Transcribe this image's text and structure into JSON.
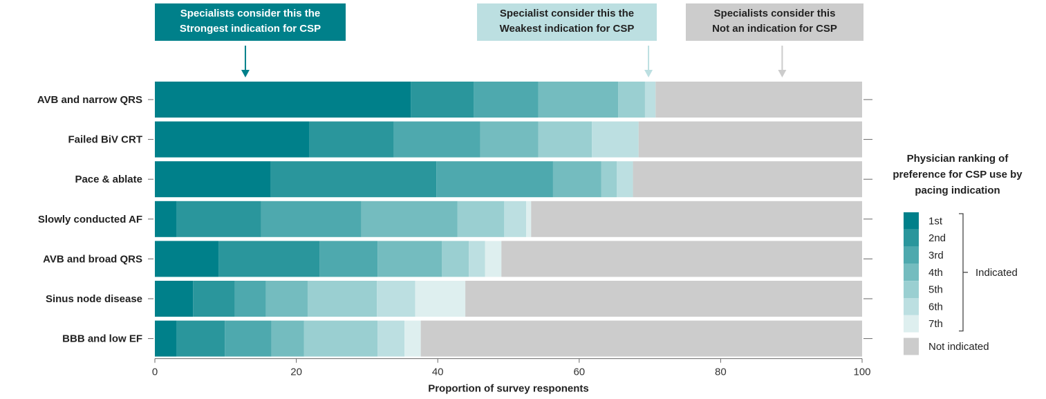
{
  "chart_data": {
    "type": "bar",
    "orientation": "horizontal",
    "stacked": true,
    "xlabel": "Proportion of survey responents",
    "xlim": [
      0,
      100
    ],
    "xticks": [
      0,
      20,
      40,
      60,
      80,
      100
    ],
    "categories": [
      "AVB and narrow QRS",
      "Failed BiV CRT",
      "Pace & ablate",
      "Slowly conducted AF",
      "AVB and broad QRS",
      "Sinus node disease",
      "BBB and low EF"
    ],
    "series": [
      {
        "name": "1st",
        "color": "#00808a",
        "values": [
          36.2,
          21.8,
          16.4,
          3.1,
          9.0,
          5.4,
          3.1
        ]
      },
      {
        "name": "2nd",
        "color": "#2a969c",
        "values": [
          8.9,
          12.0,
          23.4,
          11.9,
          14.3,
          5.9,
          6.8
        ]
      },
      {
        "name": "3rd",
        "color": "#4ea9ae",
        "values": [
          9.1,
          12.2,
          16.5,
          14.2,
          8.2,
          4.4,
          6.6
        ]
      },
      {
        "name": "4th",
        "color": "#74bcbf",
        "values": [
          11.3,
          8.2,
          6.8,
          13.6,
          9.1,
          5.9,
          4.6
        ]
      },
      {
        "name": "5th",
        "color": "#9acfd1",
        "values": [
          3.8,
          7.6,
          2.2,
          6.6,
          3.8,
          9.8,
          10.4
        ]
      },
      {
        "name": "6th",
        "color": "#bcdfe1",
        "values": [
          1.5,
          6.6,
          2.3,
          3.1,
          2.3,
          5.4,
          3.8
        ]
      },
      {
        "name": "7th",
        "color": "#deefef",
        "values": [
          0.0,
          0.0,
          0.0,
          0.7,
          2.3,
          7.1,
          2.3
        ]
      },
      {
        "name": "Not indicated",
        "color": "#cccccc",
        "values": [
          29.2,
          31.6,
          32.4,
          46.8,
          51.0,
          56.1,
          62.4
        ]
      }
    ],
    "legend": {
      "title_lines": [
        "Physician ranking of",
        "preference for CSP use by",
        "pacing indication"
      ],
      "bracket_label": "Indicated",
      "position": "right"
    },
    "annotations": [
      {
        "lines": [
          "Specialists consider this the",
          "Strongest indication for CSP"
        ],
        "x": 12.8,
        "box_color": "#00808a",
        "text_color": "#ffffff",
        "arrow_color": "#00808a"
      },
      {
        "lines": [
          "Specialist consider this the",
          "Weakest indication for CSP"
        ],
        "x": 69.8,
        "box_color": "#bcdfe1",
        "text_color": "#222222",
        "arrow_color": "#bcdfe1"
      },
      {
        "lines": [
          "Specialists consider this",
          "Not an indication for CSP"
        ],
        "x": 88.7,
        "box_color": "#cccccc",
        "text_color": "#222222",
        "arrow_color": "#cccccc"
      }
    ],
    "grid": false
  }
}
